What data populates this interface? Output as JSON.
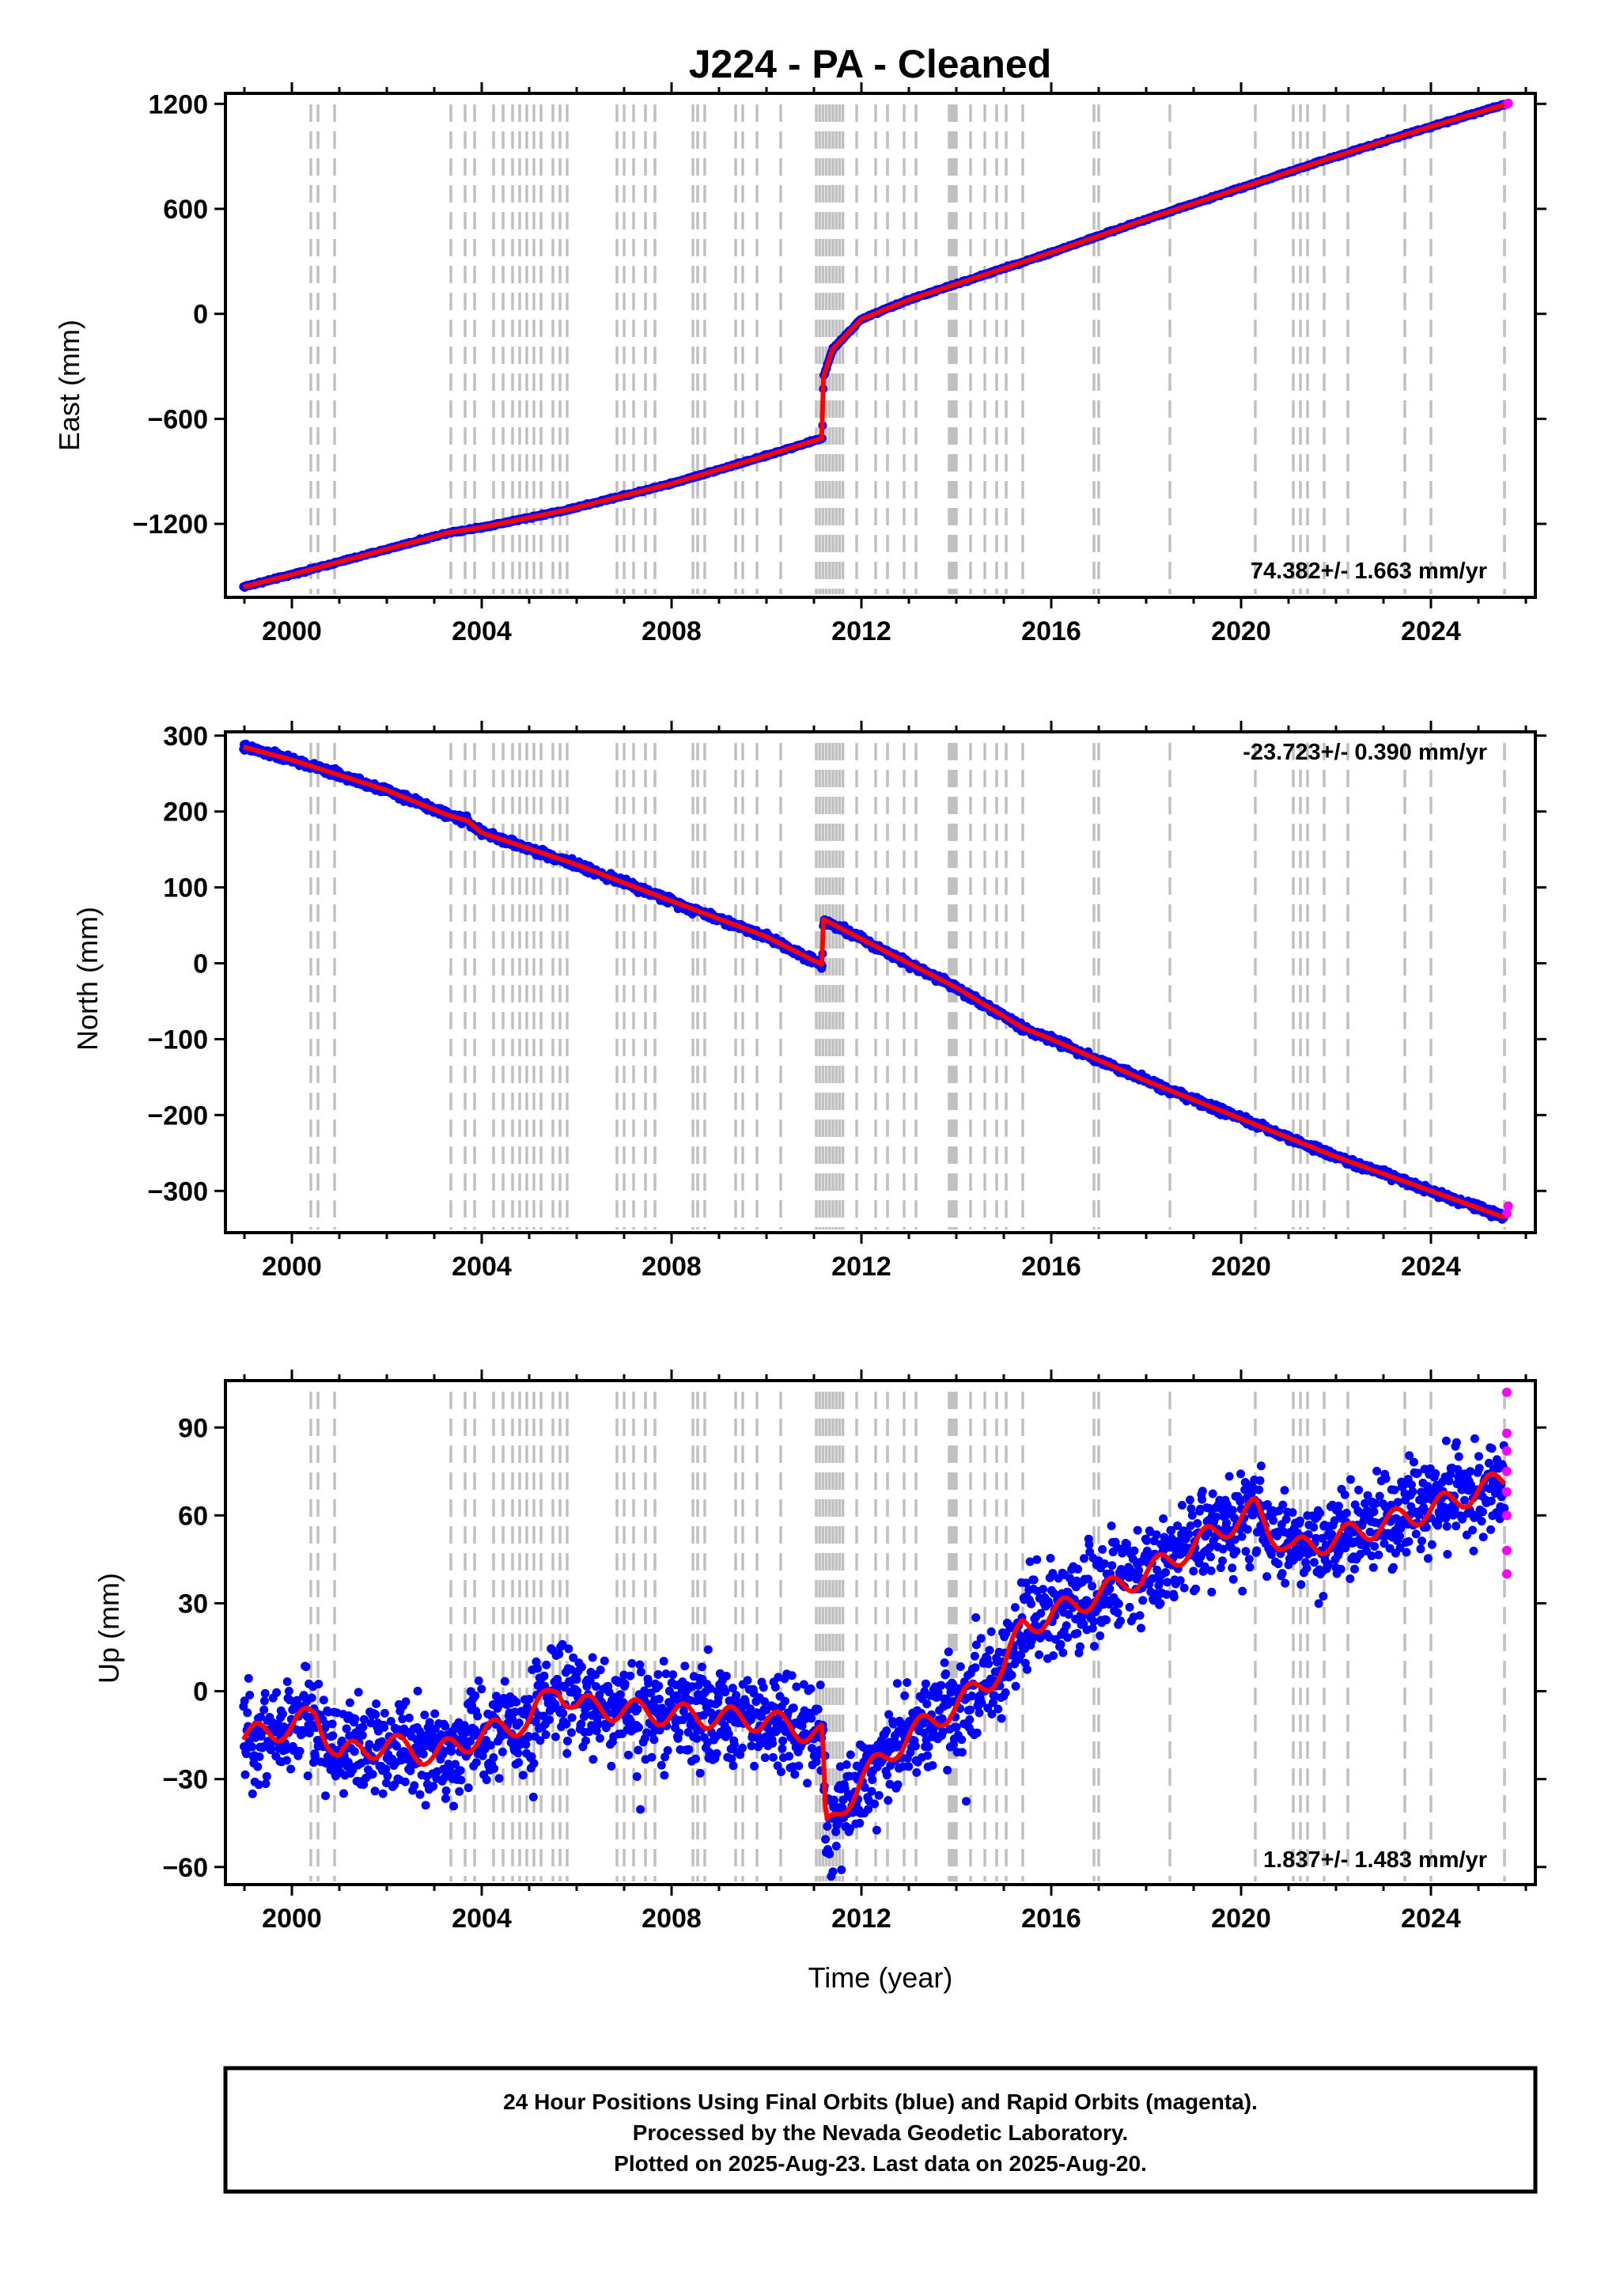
{
  "title": "J224  - PA - Cleaned",
  "x_axis": {
    "label": "Time (year)",
    "range": [
      1998.6,
      2026.2
    ],
    "ticks": [
      2000,
      2004,
      2008,
      2012,
      2016,
      2020,
      2024
    ]
  },
  "event_lines": [
    2000.4,
    2000.55,
    2000.9,
    2003.35,
    2003.65,
    2003.85,
    2004.25,
    2004.45,
    2004.65,
    2004.8,
    2004.95,
    2005.1,
    2005.25,
    2005.5,
    2005.65,
    2005.8,
    2006.85,
    2007.0,
    2007.2,
    2007.45,
    2007.65,
    2008.45,
    2008.55,
    2008.7,
    2009.35,
    2009.5,
    2009.8,
    2010.3,
    2011.05,
    2011.12,
    2011.19,
    2011.26,
    2011.33,
    2011.4,
    2011.47,
    2011.54,
    2011.61,
    2011.9,
    2012.3,
    2012.55,
    2012.9,
    2013.15,
    2013.85,
    2013.9,
    2013.95,
    2014.0,
    2014.3,
    2014.6,
    2014.85,
    2015.05,
    2015.4,
    2016.9,
    2017.0,
    2018.5,
    2020.3,
    2021.1,
    2021.25,
    2021.4,
    2021.75,
    2022.25,
    2023.45,
    2024.0,
    2025.55
  ],
  "colors": {
    "final_orbits": "#0000ff",
    "rapid_orbits": "#ff00ff",
    "model": "#ff0000",
    "event_line": "#c0c0c0",
    "frame": "#000000"
  },
  "chart_data": [
    {
      "type": "scatter",
      "component": "East",
      "ylabel": "East (mm)",
      "ylim": [
        -1620,
        1260
      ],
      "yticks": [
        1200,
        600,
        0,
        -600,
        -1200
      ],
      "rate": "74.382+/- 1.663 mm/yr",
      "rate_position": "bottom-right",
      "noise": 3,
      "series": [
        {
          "name": "final orbits",
          "x": [
            1998.98,
            2000.0,
            2002.0,
            2003.3,
            2004.0,
            2005.8,
            2008.0,
            2010.0,
            2011.18,
            2011.2,
            2011.4,
            2012.0,
            2013.0,
            2014.0,
            2015.0,
            2016.0,
            2018.0,
            2020.0,
            2022.0,
            2024.0,
            2025.55
          ],
          "y": [
            -1560,
            -1490,
            -1345,
            -1250,
            -1220,
            -1120,
            -970,
            -810,
            -710,
            -360,
            -200,
            -30,
            80,
            170,
            260,
            350,
            540,
            720,
            900,
            1070,
            1195
          ]
        },
        {
          "name": "rapid orbits",
          "x": [
            2025.6,
            2025.63
          ],
          "y": [
            1198,
            1203
          ]
        }
      ]
    },
    {
      "type": "scatter",
      "component": "North",
      "ylabel": "North (mm)",
      "ylim": [
        -355,
        305
      ],
      "yticks": [
        300,
        200,
        100,
        0,
        -100,
        -200,
        -300
      ],
      "rate": "-23.723+/- 0.390 mm/yr",
      "rate_position": "top-right",
      "noise": 2.5,
      "series": [
        {
          "name": "final orbits",
          "x": [
            1998.98,
            2000.0,
            2002.0,
            2003.3,
            2003.7,
            2004.0,
            2006.0,
            2008.0,
            2010.0,
            2011.18,
            2011.2,
            2012.0,
            2014.0,
            2015.4,
            2016.0,
            2018.0,
            2020.0,
            2022.0,
            2024.0,
            2025.55
          ],
          "y": [
            285,
            268,
            228,
            195,
            188,
            172,
            130,
            82,
            35,
            -2,
            58,
            32,
            -32,
            -85,
            -100,
            -155,
            -205,
            -255,
            -300,
            -335
          ]
        },
        {
          "name": "rapid orbits",
          "x": [
            2025.6,
            2025.63
          ],
          "y": [
            -330,
            -320
          ]
        }
      ]
    },
    {
      "type": "scatter",
      "component": "Up",
      "ylabel": "Up (mm)",
      "ylim": [
        -66,
        106
      ],
      "yticks": [
        90,
        60,
        30,
        0,
        -30,
        -60
      ],
      "rate": "1.837+/- 1.483 mm/yr",
      "rate_position": "bottom-right",
      "noise": 8,
      "series": [
        {
          "name": "final orbits",
          "x": [
            1998.98,
            2000.0,
            2000.5,
            2001.0,
            2002.0,
            2003.0,
            2004.0,
            2005.0,
            2005.6,
            2006.0,
            2008.0,
            2010.0,
            2011.18,
            2011.25,
            2012.0,
            2013.0,
            2014.0,
            2015.0,
            2015.4,
            2016.0,
            2018.0,
            2020.3,
            2020.6,
            2021.1,
            2022.0,
            2024.0,
            2025.55
          ],
          "y": [
            -16,
            -12,
            -8,
            -22,
            -18,
            -22,
            -15,
            -10,
            2,
            -5,
            -8,
            -10,
            -15,
            -48,
            -30,
            -15,
            -5,
            8,
            22,
            26,
            40,
            62,
            55,
            48,
            52,
            62,
            72
          ]
        },
        {
          "name": "rapid orbits",
          "x": [
            2025.6,
            2025.6,
            2025.6,
            2025.6,
            2025.6,
            2025.6,
            2025.6,
            2025.6
          ],
          "y": [
            102,
            88,
            82,
            75,
            68,
            60,
            48,
            40
          ]
        }
      ]
    }
  ],
  "footer": {
    "line1": "24 Hour Positions Using Final Orbits (blue) and Rapid Orbits (magenta).",
    "line2": "Processed by the Nevada Geodetic Laboratory.",
    "line3": "Plotted on 2025-Aug-23. Last data on 2025-Aug-20."
  }
}
